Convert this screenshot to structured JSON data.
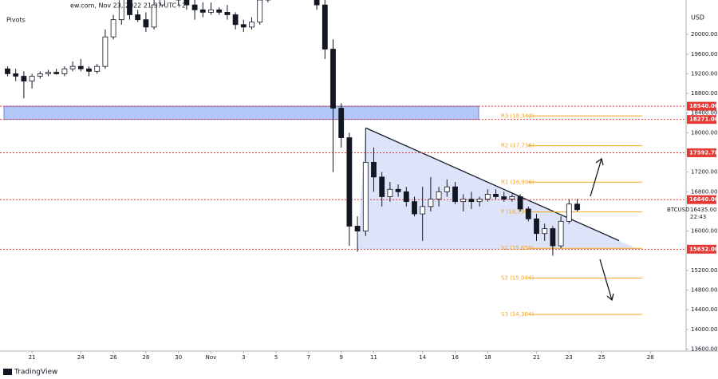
{
  "chart_data": {
    "type": "candlestick",
    "source": "ew.com, Nov 23, 2022 21:37 UTC+2",
    "indicator": "Pivots",
    "currency": "USD",
    "logo": "TradingView",
    "categories": [
      null,
      null,
      null,
      "21",
      null,
      null,
      null,
      null,
      null,
      "24",
      null,
      null,
      null,
      "26",
      null,
      null,
      null,
      "28",
      null,
      null,
      null,
      "30",
      null,
      null,
      null,
      "Nov",
      null,
      null,
      null,
      "3",
      null,
      null,
      null,
      "5",
      null,
      null,
      null,
      "7",
      null,
      null,
      null,
      "9",
      null,
      null,
      null,
      "11",
      null,
      null,
      null,
      null,
      null,
      "14",
      null,
      null,
      null,
      "16",
      null,
      null,
      null,
      "18",
      null,
      null,
      null,
      null,
      null,
      "21",
      null,
      null,
      null,
      "23",
      null,
      null,
      null,
      "25",
      null,
      null,
      null,
      null,
      null,
      "28",
      null,
      null,
      null,
      null
    ],
    "open": [
      19300,
      19200,
      19150,
      19050,
      19150,
      19200,
      19230,
      19200,
      19300,
      19350,
      19300,
      19250,
      19350,
      19950,
      20300,
      20750,
      20400,
      20300,
      20150,
      20600,
      20800,
      20850,
      20700,
      20600,
      20500,
      20450,
      20500,
      20450,
      20400,
      20200,
      20150,
      20250,
      20700,
      21150,
      21250,
      21300,
      21200,
      20950,
      20800,
      20600,
      19700,
      18500,
      17900,
      16100,
      16000,
      17400,
      17100,
      16700,
      16850,
      16800,
      16600,
      16350,
      16500,
      16650,
      16800,
      16900,
      16600,
      16650,
      16600,
      16650,
      16750,
      16700,
      16650,
      16700,
      16450,
      16250,
      15950,
      16050,
      15700,
      16200,
      16550,
      null,
      null,
      null,
      null,
      null,
      null,
      null,
      null,
      null,
      null,
      null,
      null,
      null
    ],
    "high": [
      19350,
      19300,
      19250,
      19200,
      19250,
      19280,
      19300,
      19350,
      19450,
      19500,
      19350,
      19400,
      20100,
      20400,
      20850,
      20800,
      20500,
      20450,
      20700,
      20950,
      20900,
      20900,
      20750,
      20700,
      20650,
      20650,
      20550,
      20600,
      20450,
      20300,
      20350,
      20800,
      21200,
      21300,
      21350,
      21350,
      21250,
      21000,
      20900,
      20700,
      19900,
      18600,
      18000,
      16300,
      18100,
      17700,
      17200,
      17000,
      16950,
      16900,
      16700,
      16900,
      17100,
      16900,
      17050,
      17000,
      16750,
      16800,
      16700,
      16850,
      16850,
      16800,
      16750,
      16750,
      16500,
      16350,
      16150,
      16100,
      16300,
      16650,
      16650,
      null,
      null,
      null,
      null,
      null,
      null,
      null,
      null,
      null,
      null,
      null,
      null,
      null
    ],
    "low": [
      19150,
      19050,
      18700,
      18900,
      19100,
      19150,
      19180,
      19150,
      19250,
      19250,
      19150,
      19200,
      19300,
      19900,
      20200,
      20300,
      20250,
      20050,
      20100,
      20550,
      20700,
      20600,
      20500,
      20300,
      20350,
      20400,
      20400,
      20300,
      20100,
      20050,
      20100,
      20200,
      20650,
      21100,
      21200,
      21100,
      20900,
      20700,
      20500,
      19500,
      17200,
      17700,
      15700,
      15580,
      15900,
      16800,
      16500,
      16600,
      16700,
      16500,
      16300,
      15800,
      16400,
      16500,
      16700,
      16550,
      16400,
      16450,
      16500,
      16600,
      16650,
      16600,
      16600,
      16400,
      16200,
      15800,
      15800,
      15500,
      15650,
      16150,
      16400,
      null,
      null,
      null,
      null,
      null,
      null,
      null,
      null,
      null,
      null,
      null,
      null,
      null
    ],
    "close": [
      19200,
      19150,
      19050,
      19150,
      19200,
      19230,
      19200,
      19300,
      19350,
      19300,
      19250,
      19350,
      19950,
      20300,
      20750,
      20400,
      20300,
      20150,
      20600,
      20800,
      20850,
      20700,
      20600,
      20500,
      20450,
      20500,
      20450,
      20400,
      20200,
      20150,
      20250,
      20700,
      21150,
      21250,
      21300,
      21200,
      20950,
      20800,
      20600,
      19700,
      18500,
      17900,
      16100,
      16000,
      17400,
      17100,
      16700,
      16850,
      16800,
      16600,
      16350,
      16500,
      16650,
      16800,
      16900,
      16600,
      16650,
      16600,
      16650,
      16750,
      16700,
      16650,
      16700,
      16450,
      16250,
      15950,
      16050,
      15700,
      16200,
      16550,
      16435,
      null,
      null,
      null,
      null,
      null,
      null,
      null,
      null,
      null,
      null,
      null,
      null,
      null
    ],
    "ylim": [
      13560,
      20700
    ],
    "yticks": [
      {
        "value": 20000,
        "label": "20000.00"
      },
      {
        "value": 19600,
        "label": "19600.00"
      },
      {
        "value": 19200,
        "label": "19200.00"
      },
      {
        "value": 18800,
        "label": "18800.00"
      },
      {
        "value": 18400,
        "label": "18400.00"
      },
      {
        "value": 18000,
        "label": "18000.00"
      },
      {
        "value": 17200,
        "label": "17200.00"
      },
      {
        "value": 16800,
        "label": "16800.00"
      },
      {
        "value": 16000,
        "label": "16000.00"
      },
      {
        "value": 15200,
        "label": "15200.00"
      },
      {
        "value": 14800,
        "label": "14800.00"
      },
      {
        "value": 14400,
        "label": "14400.00"
      },
      {
        "value": 14000,
        "label": "14000.00"
      },
      {
        "value": 13600,
        "label": "13600.00"
      }
    ],
    "levels": [
      {
        "value": 18540,
        "label": "18540.00"
      },
      {
        "value": 18271,
        "label": "18271.00"
      },
      {
        "value": 17592.78,
        "label": "17592.78"
      },
      {
        "value": 16640,
        "label": "16640.00"
      },
      {
        "value": 15632,
        "label": "15632.00"
      }
    ],
    "pivots": [
      {
        "value": 18342,
        "label": "R3 (18,342)"
      },
      {
        "value": 17736,
        "label": "R2 (17,736)"
      },
      {
        "value": 16996,
        "label": "R1 (16,996)"
      },
      {
        "value": 16390,
        "label": "P (16,390)"
      },
      {
        "value": 15650,
        "label": "S1 (15,650)"
      },
      {
        "value": 15044,
        "label": "S2 (15,044)"
      },
      {
        "value": 14304,
        "label": "S3 (14,304)"
      }
    ],
    "last": {
      "symbol": "BTCUSD",
      "value": 16435,
      "label": "16435.00",
      "countdown": "22:43"
    },
    "up_color": "#ffffff",
    "down_color": "#131722",
    "level_color": "#e53935",
    "pivot_color": "#f5a623",
    "zone_color": "#b3c7f7",
    "triangle_color": "#d4ddf9"
  }
}
